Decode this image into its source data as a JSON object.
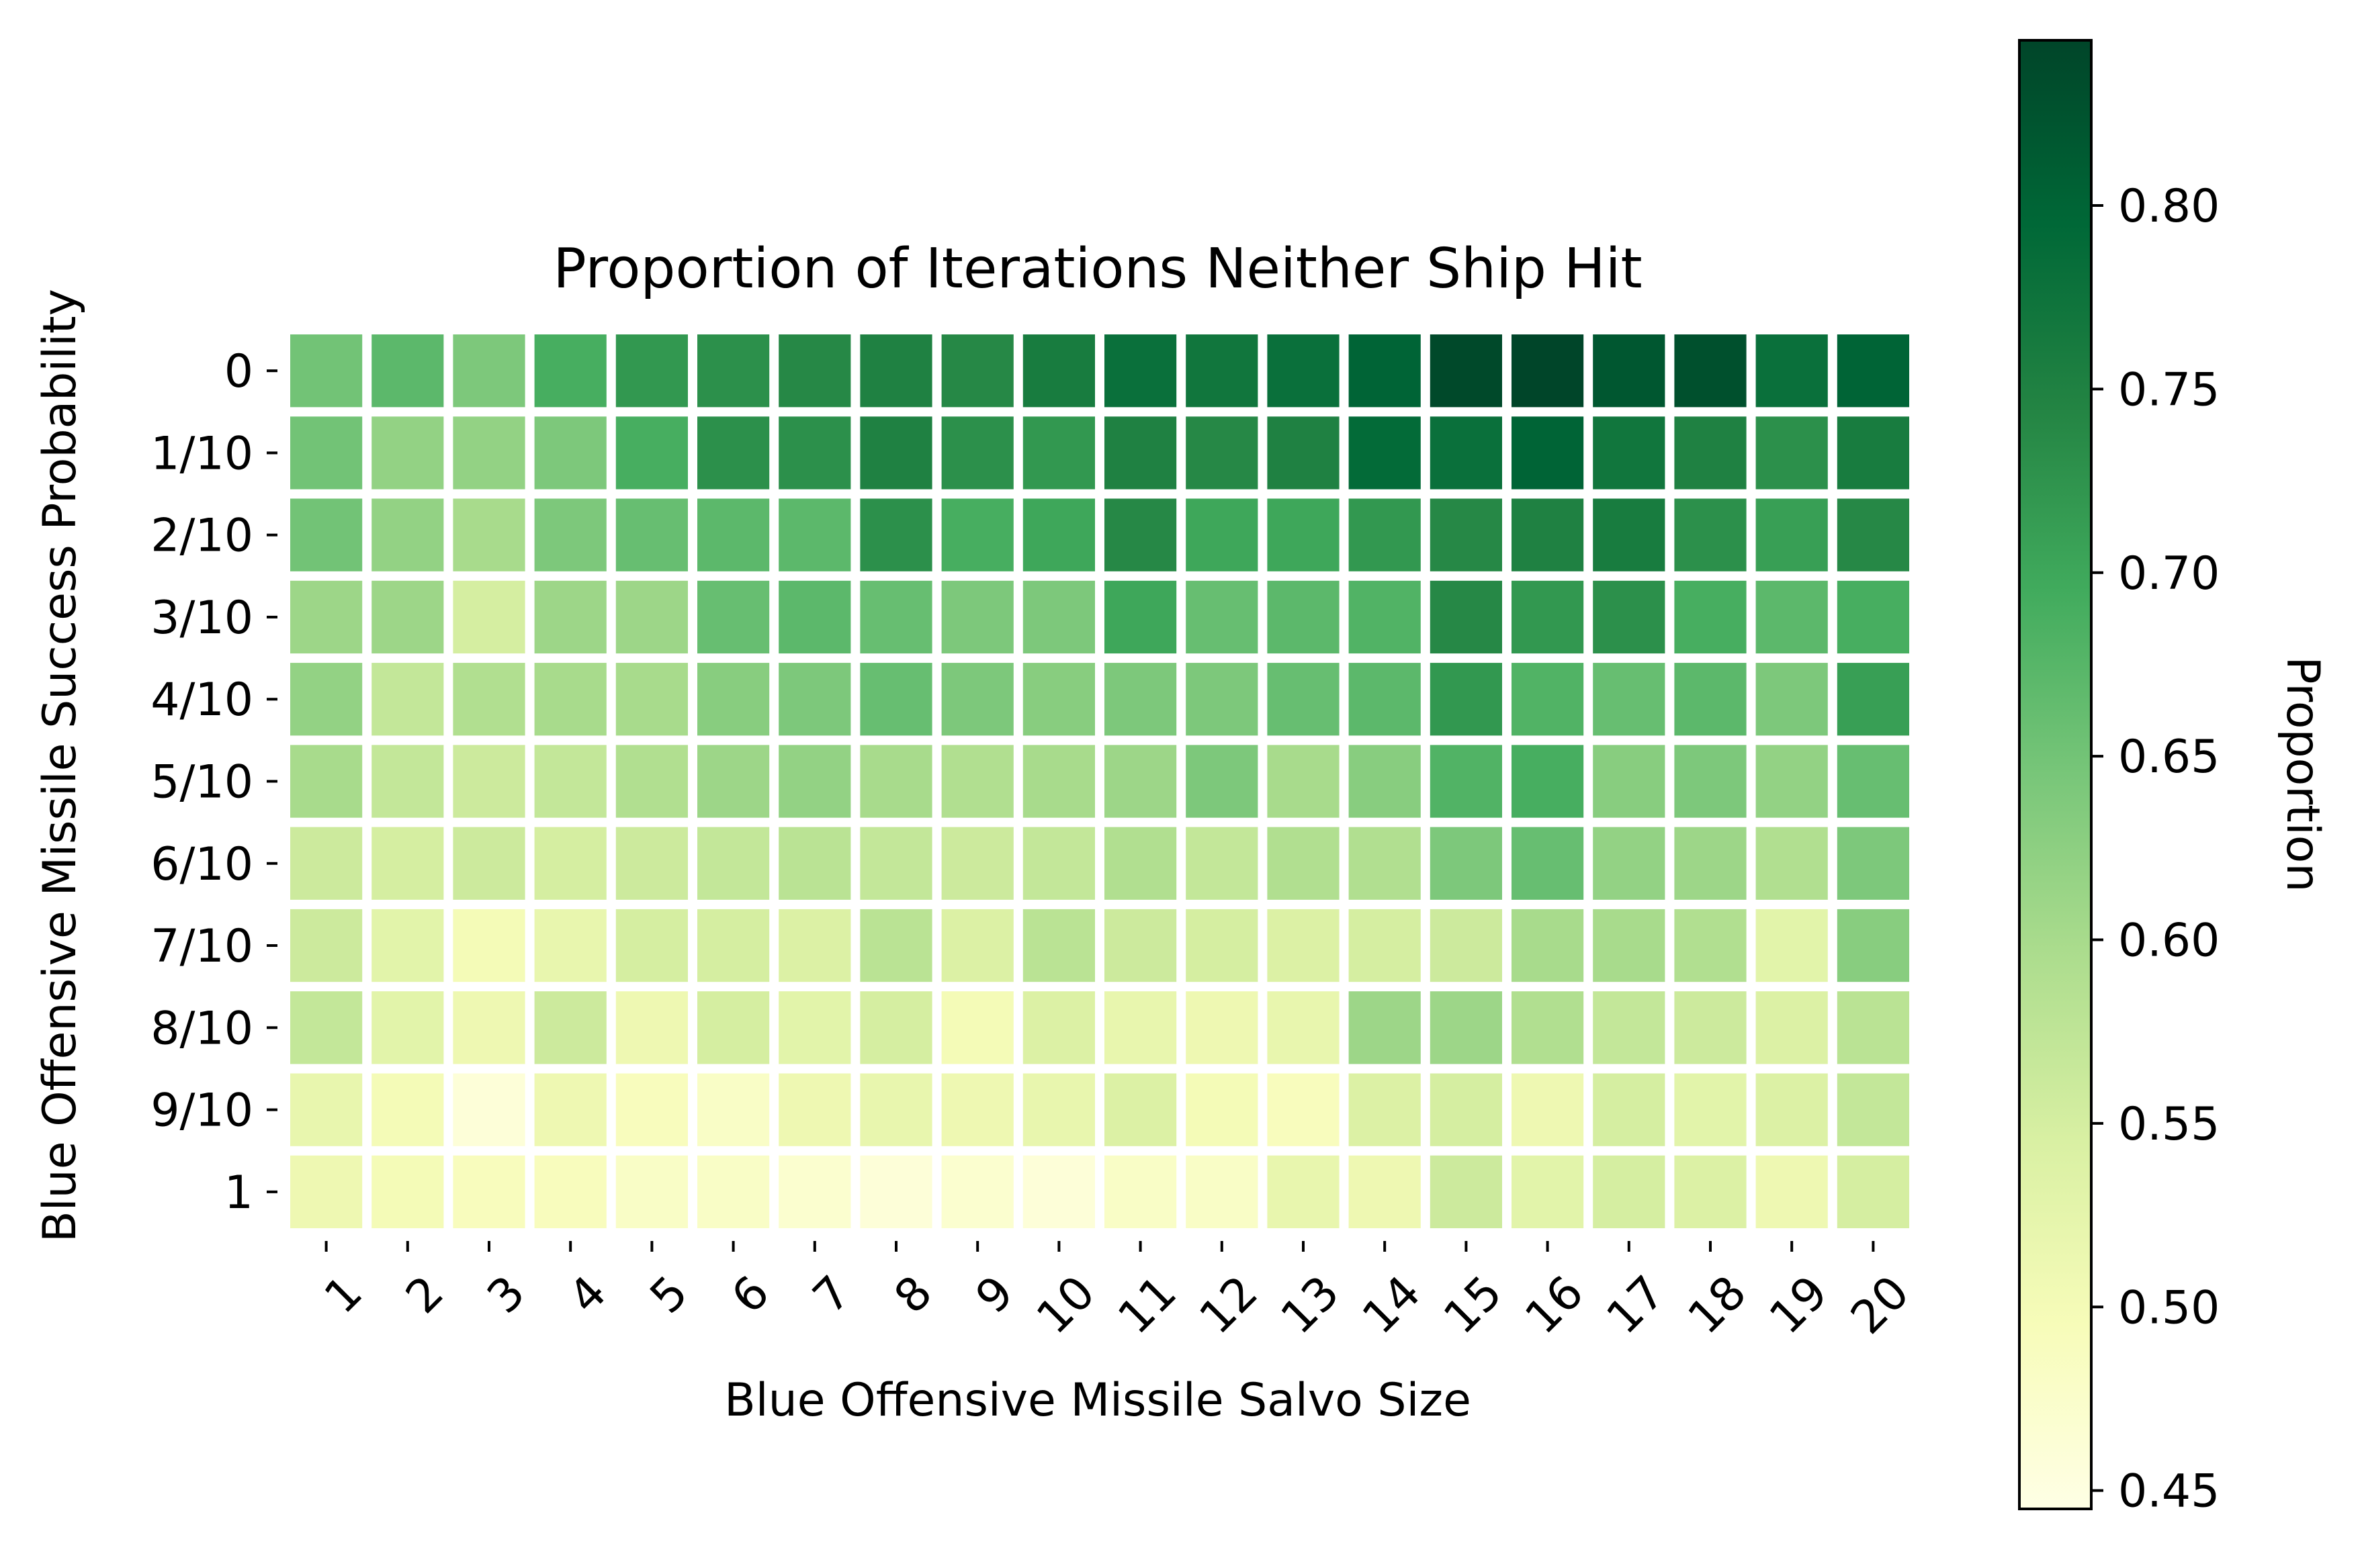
{
  "chart_data": {
    "type": "heatmap",
    "title": "Proportion of Iterations Neither Ship Hit",
    "xlabel": "Blue Offensive Missile Salvo Size",
    "ylabel": "Blue Offensive Missile Success Probability",
    "x_categories": [
      "1",
      "2",
      "3",
      "4",
      "5",
      "6",
      "7",
      "8",
      "9",
      "10",
      "11",
      "12",
      "13",
      "14",
      "15",
      "16",
      "17",
      "18",
      "19",
      "20"
    ],
    "y_categories": [
      "0",
      "1/10",
      "2/10",
      "3/10",
      "4/10",
      "5/10",
      "6/10",
      "7/10",
      "8/10",
      "9/10",
      "1"
    ],
    "values": [
      [
        0.65,
        0.67,
        0.64,
        0.69,
        0.72,
        0.73,
        0.74,
        0.75,
        0.74,
        0.76,
        0.78,
        0.77,
        0.78,
        0.8,
        0.84,
        0.85,
        0.82,
        0.83,
        0.78,
        0.8
      ],
      [
        0.65,
        0.62,
        0.62,
        0.64,
        0.69,
        0.73,
        0.73,
        0.75,
        0.73,
        0.72,
        0.75,
        0.74,
        0.75,
        0.79,
        0.78,
        0.8,
        0.77,
        0.75,
        0.73,
        0.76
      ],
      [
        0.65,
        0.62,
        0.6,
        0.64,
        0.66,
        0.67,
        0.67,
        0.73,
        0.69,
        0.7,
        0.74,
        0.7,
        0.7,
        0.72,
        0.74,
        0.75,
        0.76,
        0.73,
        0.71,
        0.74
      ],
      [
        0.61,
        0.61,
        0.55,
        0.61,
        0.61,
        0.66,
        0.67,
        0.66,
        0.64,
        0.64,
        0.7,
        0.66,
        0.67,
        0.68,
        0.74,
        0.72,
        0.73,
        0.69,
        0.67,
        0.69
      ],
      [
        0.62,
        0.57,
        0.59,
        0.6,
        0.6,
        0.63,
        0.64,
        0.66,
        0.64,
        0.63,
        0.64,
        0.64,
        0.66,
        0.67,
        0.72,
        0.68,
        0.66,
        0.67,
        0.64,
        0.71
      ],
      [
        0.6,
        0.57,
        0.56,
        0.57,
        0.59,
        0.61,
        0.62,
        0.6,
        0.59,
        0.6,
        0.61,
        0.64,
        0.6,
        0.63,
        0.68,
        0.69,
        0.63,
        0.64,
        0.62,
        0.66
      ],
      [
        0.56,
        0.55,
        0.56,
        0.55,
        0.56,
        0.57,
        0.58,
        0.57,
        0.56,
        0.57,
        0.59,
        0.57,
        0.59,
        0.59,
        0.64,
        0.66,
        0.62,
        0.61,
        0.59,
        0.64
      ],
      [
        0.56,
        0.53,
        0.5,
        0.52,
        0.55,
        0.55,
        0.54,
        0.58,
        0.54,
        0.58,
        0.56,
        0.55,
        0.54,
        0.55,
        0.56,
        0.6,
        0.6,
        0.59,
        0.53,
        0.63
      ],
      [
        0.57,
        0.53,
        0.51,
        0.56,
        0.51,
        0.55,
        0.53,
        0.55,
        0.5,
        0.54,
        0.52,
        0.51,
        0.52,
        0.61,
        0.61,
        0.59,
        0.57,
        0.56,
        0.54,
        0.58
      ],
      [
        0.52,
        0.5,
        0.46,
        0.51,
        0.49,
        0.48,
        0.51,
        0.52,
        0.51,
        0.52,
        0.54,
        0.5,
        0.49,
        0.54,
        0.55,
        0.51,
        0.55,
        0.53,
        0.54,
        0.57
      ],
      [
        0.51,
        0.5,
        0.49,
        0.49,
        0.48,
        0.48,
        0.47,
        0.46,
        0.47,
        0.46,
        0.48,
        0.48,
        0.52,
        0.51,
        0.56,
        0.53,
        0.55,
        0.54,
        0.51,
        0.55
      ]
    ],
    "colorbar": {
      "label": "Proportion",
      "min": 0.445,
      "max": 0.845,
      "ticks": [
        "0.45",
        "0.50",
        "0.55",
        "0.60",
        "0.65",
        "0.70",
        "0.75",
        "0.80"
      ],
      "colormap": "YlGn",
      "colors": [
        "#ffffe5",
        "#f7fcb9",
        "#d9f0a3",
        "#addd8e",
        "#78c679",
        "#41ab5d",
        "#238443",
        "#006837",
        "#004529"
      ]
    },
    "grid": false,
    "cell_edge_color": "#ffffff"
  }
}
